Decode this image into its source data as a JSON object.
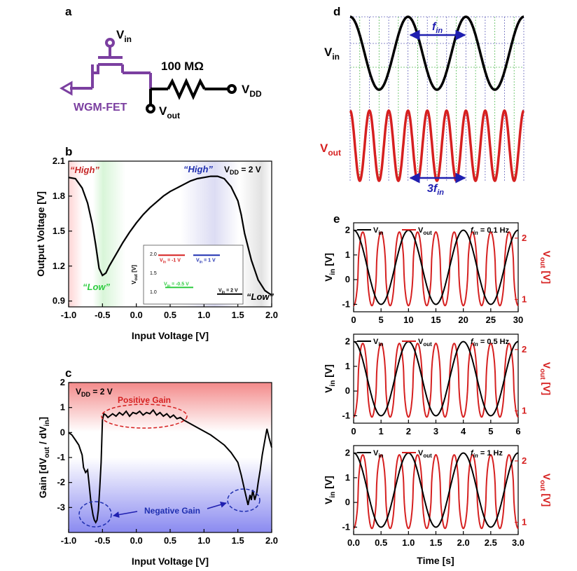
{
  "panel_labels": {
    "a": "a",
    "b": "b",
    "c": "c",
    "d": "d",
    "e": "e"
  },
  "panel_a": {
    "vin": "V",
    "vin_sub": "in",
    "resistor": "100 MΩ",
    "vdd": "V",
    "vdd_sub": "DD",
    "device": "WGM-FET",
    "vout": "V",
    "vout_sub": "out",
    "colors": {
      "device": "#7b3fa0",
      "wire": "#000000"
    }
  },
  "panel_d": {
    "vin": "V",
    "vin_sub": "in",
    "vout": "V",
    "vout_sub": "out",
    "fin": "f",
    "fin_sub": "in",
    "three_fin": "3f",
    "three_fin_sub": "in",
    "colors": {
      "vin": "#000000",
      "vout": "#d62020",
      "arrow": "#1f1fb0"
    }
  },
  "chart_data": [
    {
      "id": "b",
      "type": "line",
      "xlabel": "Input Voltage [V]",
      "ylabel": "Output Voltage [V]",
      "xlim": [
        -1.0,
        2.0
      ],
      "ylim": [
        0.85,
        2.1
      ],
      "xticks": [
        "-1.0",
        "-0.5",
        "0.0",
        "0.5",
        "1.0",
        "1.5",
        "2.0"
      ],
      "yticks": [
        "0.9",
        "1.2",
        "1.5",
        "1.8",
        "2.1"
      ],
      "series": [
        {
          "x": [
            -1.0,
            -0.9,
            -0.8,
            -0.72,
            -0.65,
            -0.6,
            -0.55,
            -0.5,
            -0.45,
            -0.4,
            -0.3,
            -0.2,
            -0.1,
            0.0,
            0.1,
            0.2,
            0.3,
            0.4,
            0.5,
            0.6,
            0.7,
            0.8,
            0.9,
            1.0,
            1.1,
            1.2,
            1.3,
            1.4,
            1.5,
            1.55,
            1.6,
            1.7,
            1.8,
            1.9,
            2.0
          ],
          "y": [
            1.96,
            1.95,
            1.87,
            1.74,
            1.56,
            1.38,
            1.18,
            1.12,
            1.14,
            1.2,
            1.3,
            1.4,
            1.49,
            1.57,
            1.64,
            1.7,
            1.75,
            1.8,
            1.84,
            1.87,
            1.9,
            1.93,
            1.95,
            1.96,
            1.97,
            1.97,
            1.95,
            1.88,
            1.76,
            1.64,
            1.48,
            1.25,
            1.08,
            0.99,
            0.95
          ]
        }
      ],
      "annotations": [
        {
          "text": "“High”",
          "color": "#c62828"
        },
        {
          "text": "“High”",
          "color": "#1f2fb0"
        },
        {
          "text": "“Low”",
          "color": "#2ecc40"
        },
        {
          "text": "“Low”",
          "color": "#000000"
        }
      ],
      "vdd_label": "V",
      "vdd_sub": "DD",
      "vdd_value": " = 2 V",
      "inset": {
        "ylabel": "V",
        "ylabel_sub": "out",
        "ylabel_unit": " [V]",
        "yticks": [
          "1.0",
          "1.5",
          "2.0"
        ],
        "segments": [
          {
            "label": "V",
            "sub": "in",
            "value": " = -1 V",
            "color": "#d62020",
            "y": 1.95
          },
          {
            "label": "V",
            "sub": "in",
            "value": " = 1 V",
            "color": "#1f2fb0",
            "y": 1.95
          },
          {
            "label": "V",
            "sub": "in",
            "value": " = -0.5 V",
            "color": "#2ecc40",
            "y": 1.12
          },
          {
            "label": "V",
            "sub": "in",
            "value": " = 2 V",
            "color": "#000000",
            "y": 0.95
          }
        ]
      }
    },
    {
      "id": "c",
      "type": "line",
      "xlabel": "Input Voltage [V]",
      "ylabel": "Gain [dV",
      "ylabel_sub1": "out",
      "ylabel_mid": " / dV",
      "ylabel_sub2": "in",
      "ylabel_end": "]",
      "xlim": [
        -1.0,
        2.0
      ],
      "ylim": [
        -4.0,
        2.0
      ],
      "xticks": [
        "-1.0",
        "-0.5",
        "0.0",
        "0.5",
        "1.0",
        "1.5",
        "2.0"
      ],
      "yticks": [
        "-3",
        "-2",
        "-1",
        "0",
        "1",
        "2"
      ],
      "series": [
        {
          "x": [
            -1.0,
            -0.95,
            -0.9,
            -0.85,
            -0.8,
            -0.78,
            -0.75,
            -0.72,
            -0.7,
            -0.67,
            -0.64,
            -0.62,
            -0.6,
            -0.58,
            -0.56,
            -0.54,
            -0.52,
            -0.5,
            -0.48,
            -0.45,
            -0.42,
            -0.35,
            -0.3,
            -0.25,
            -0.2,
            -0.15,
            -0.1,
            -0.05,
            0.0,
            0.05,
            0.1,
            0.15,
            0.2,
            0.25,
            0.3,
            0.35,
            0.4,
            0.45,
            0.5,
            0.55,
            0.6,
            0.65,
            0.7,
            0.8,
            0.9,
            1.0,
            1.1,
            1.2,
            1.3,
            1.4,
            1.5,
            1.55,
            1.6,
            1.65,
            1.68,
            1.7,
            1.72,
            1.75,
            1.78,
            1.8,
            1.83,
            1.86,
            1.9,
            1.93,
            1.96,
            2.0
          ],
          "y": [
            0.0,
            -0.1,
            -0.3,
            -0.5,
            -0.9,
            -1.4,
            -1.6,
            -1.5,
            -2.0,
            -2.8,
            -3.3,
            -3.5,
            -3.6,
            -3.5,
            -3.1,
            -2.2,
            -1.2,
            0.5,
            0.75,
            0.7,
            0.6,
            0.75,
            0.65,
            0.8,
            0.7,
            0.85,
            0.65,
            0.8,
            0.75,
            0.85,
            0.7,
            0.8,
            0.75,
            0.9,
            0.7,
            0.8,
            0.65,
            0.75,
            0.6,
            0.7,
            0.55,
            0.6,
            0.5,
            0.35,
            0.2,
            0.05,
            -0.1,
            -0.3,
            -0.5,
            -0.8,
            -1.2,
            -1.7,
            -2.3,
            -2.9,
            -2.5,
            -2.7,
            -2.3,
            -2.7,
            -2.4,
            -2.0,
            -1.5,
            -0.9,
            -0.3,
            0.15,
            -0.2,
            -0.6
          ]
        }
      ],
      "vdd_label": "V",
      "vdd_sub": "DD",
      "vdd_value": " = 2 V",
      "annotations": [
        {
          "text": "Positive Gain",
          "color": "#d62020"
        },
        {
          "text": "Negative Gain",
          "color": "#1f2fb0"
        }
      ]
    },
    {
      "id": "e1",
      "type": "line",
      "ylabel": "V",
      "ylabel_sub": "in",
      "ylabel_unit": " [V]",
      "y2label": "V",
      "y2label_sub": "out",
      "y2label_unit": " [V]",
      "xlim": [
        0,
        30
      ],
      "ylim": [
        -1.3,
        2.3
      ],
      "y2lim": [
        0.8,
        2.25
      ],
      "xticks": [
        "0",
        "5",
        "10",
        "15",
        "20",
        "25",
        "30"
      ],
      "yticks": [
        "-1",
        "0",
        "1",
        "2"
      ],
      "y2ticks": [
        "1",
        "2"
      ],
      "legend": [
        {
          "label": "V",
          "sub": "in",
          "color": "#000000"
        },
        {
          "label": "V",
          "sub": "out",
          "color": "#d62020"
        }
      ],
      "freq_label": "f",
      "freq_sub": "in",
      "freq_value": " = 0.1 Hz",
      "vin": {
        "freq": 0.1,
        "offset": 0.5,
        "amp": 1.5
      },
      "vout": {
        "freq": 0.3,
        "offset": 1.5,
        "amp": 0.6
      }
    },
    {
      "id": "e2",
      "type": "line",
      "ylabel": "V",
      "ylabel_sub": "in",
      "ylabel_unit": " [V]",
      "y2label": "V",
      "y2label_sub": "out",
      "y2label_unit": " [V]",
      "xlim": [
        0,
        6
      ],
      "ylim": [
        -1.3,
        2.3
      ],
      "y2lim": [
        0.8,
        2.25
      ],
      "xticks": [
        "0",
        "1",
        "2",
        "3",
        "4",
        "5",
        "6"
      ],
      "yticks": [
        "-1",
        "0",
        "1",
        "2"
      ],
      "y2ticks": [
        "1",
        "2"
      ],
      "legend": [
        {
          "label": "V",
          "sub": "in",
          "color": "#000000"
        },
        {
          "label": "V",
          "sub": "out",
          "color": "#d62020"
        }
      ],
      "freq_label": "f",
      "freq_sub": "in",
      "freq_value": " = 0.5 Hz",
      "vin": {
        "freq": 0.5,
        "offset": 0.5,
        "amp": 1.5
      },
      "vout": {
        "freq": 1.5,
        "offset": 1.5,
        "amp": 0.6
      }
    },
    {
      "id": "e3",
      "type": "line",
      "xlabel": "Time [s]",
      "ylabel": "V",
      "ylabel_sub": "in",
      "ylabel_unit": " [V]",
      "y2label": "V",
      "y2label_sub": "out",
      "y2label_unit": " [V]",
      "xlim": [
        0,
        3
      ],
      "ylim": [
        -1.3,
        2.3
      ],
      "y2lim": [
        0.8,
        2.25
      ],
      "xticks": [
        "0.0",
        "0.5",
        "1.0",
        "1.5",
        "2.0",
        "2.5",
        "3.0"
      ],
      "yticks": [
        "-1",
        "0",
        "1",
        "2"
      ],
      "y2ticks": [
        "1",
        "2"
      ],
      "legend": [
        {
          "label": "V",
          "sub": "in",
          "color": "#000000"
        },
        {
          "label": "V",
          "sub": "out",
          "color": "#d62020"
        }
      ],
      "freq_label": "f",
      "freq_sub": "in",
      "freq_value": " = 1 Hz",
      "vin": {
        "freq": 1,
        "offset": 0.5,
        "amp": 1.5
      },
      "vout": {
        "freq": 3,
        "offset": 1.5,
        "amp": 0.6
      }
    }
  ]
}
